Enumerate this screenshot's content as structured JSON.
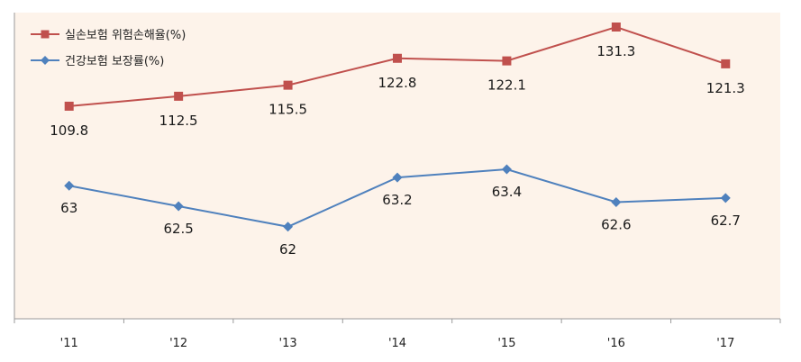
{
  "chart_data": {
    "type": "line",
    "categories": [
      "'11",
      "'12",
      "'13",
      "'14",
      "'15",
      "'16",
      "'17"
    ],
    "series": [
      {
        "name": "실손보험 위험손해율(%)",
        "color": "#c0504d",
        "marker": "square",
        "values": [
          109.8,
          112.5,
          115.5,
          122.8,
          122.1,
          131.3,
          121.3
        ],
        "labels": [
          "109.8",
          "112.5",
          "115.5",
          "122.8",
          "122.1",
          "131.3",
          "121.3"
        ]
      },
      {
        "name": "건강보험 보장률(%)",
        "color": "#4f81bd",
        "marker": "diamond",
        "values": [
          63,
          62.5,
          62,
          63.2,
          63.4,
          62.6,
          62.7
        ],
        "labels": [
          "63",
          "62.5",
          "62",
          "63.2",
          "63.4",
          "62.6",
          "62.7"
        ]
      }
    ],
    "legend_position": "top-left",
    "grid": false,
    "plot_background": "#fdf3ea",
    "title": "",
    "xlabel": "",
    "ylabel": ""
  }
}
